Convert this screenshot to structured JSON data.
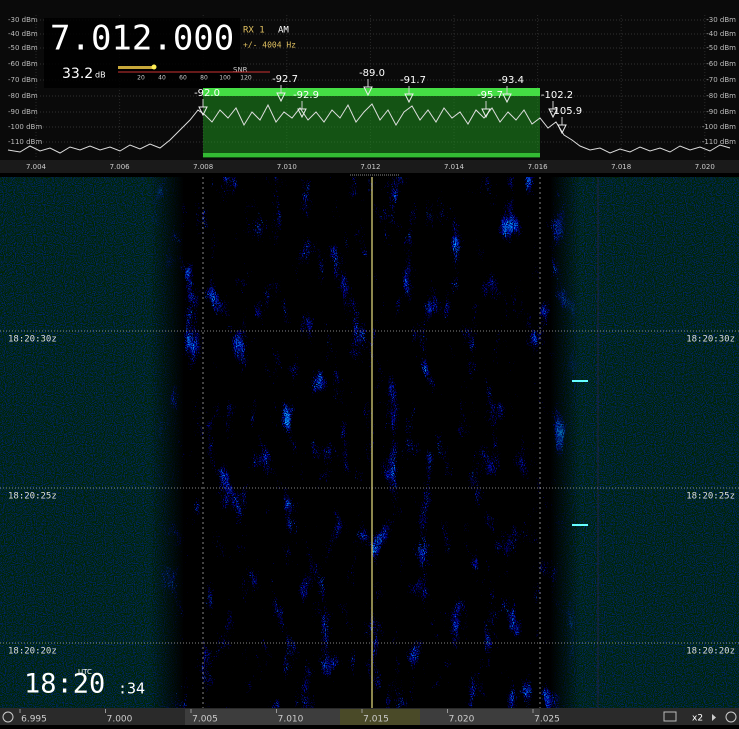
{
  "frequency_display": {
    "frequency": "7.012.000",
    "receiver": "RX 1",
    "mode": "AM",
    "bandwidth": "+/- 4004 Hz"
  },
  "snr": {
    "value": "33.2",
    "unit": "dB",
    "label": "SNR",
    "scale": [
      "20",
      "40",
      "60",
      "80",
      "100",
      "120"
    ]
  },
  "spectrum": {
    "level_labels": [
      "-30 dBm",
      "-40 dBm",
      "-50 dBm",
      "-60 dBm",
      "-70 dBm",
      "-80 dBm",
      "-90 dBm",
      "-100 dBm",
      "-110 dBm"
    ],
    "freq_labels": [
      "7.004",
      "7.006",
      "7.008",
      "7.010",
      "7.012",
      "7.014",
      "7.016",
      "7.018",
      "7.020"
    ],
    "peak_labels": [
      "-92.0",
      "-92.7",
      "-89.0",
      "-91.7",
      "-93.4",
      "-92.9",
      "-95.7",
      "-102.2",
      "-105.9"
    ]
  },
  "waterfall": {
    "time_labels": [
      "18:20:30z",
      "18:20:25z",
      "18:20:20z"
    ]
  },
  "clock": {
    "zone": "UTC",
    "hours_minutes": "18:20",
    "seconds": ":34"
  },
  "bottom_axis": {
    "labels": [
      "6.995",
      "7.000",
      "7.005",
      "7.010",
      "7.015",
      "7.020",
      "7.025"
    ]
  },
  "zoom": "x2"
}
